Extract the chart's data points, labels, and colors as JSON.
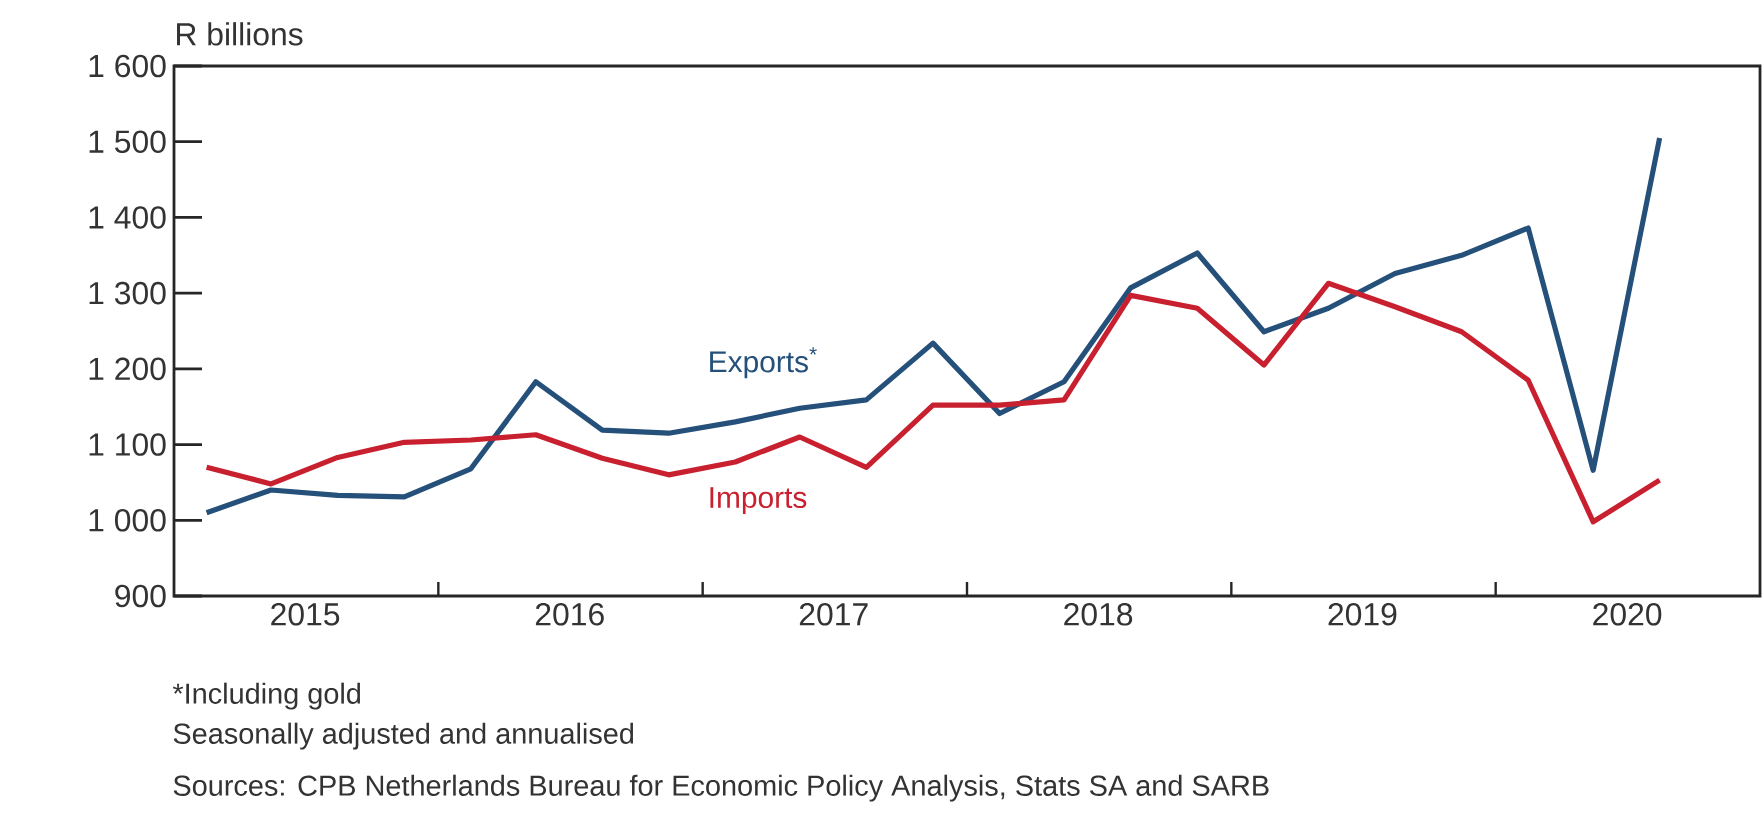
{
  "chart_data": {
    "type": "line",
    "ylabel": "R billions",
    "x": [
      "2015-02-15",
      "2015-05-15",
      "2015-08-15",
      "2015-11-15",
      "2016-02-15",
      "2016-05-15",
      "2016-08-15",
      "2016-11-15",
      "2017-02-15",
      "2017-05-15",
      "2017-08-15",
      "2017-11-15",
      "2018-02-15",
      "2018-05-15",
      "2018-08-15",
      "2018-11-15",
      "2019-02-15",
      "2019-05-15",
      "2019-08-15",
      "2019-11-15",
      "2020-02-15",
      "2020-05-15",
      "2020-08-15"
    ],
    "series": [
      {
        "name": "Exports$^{*}$",
        "color": "#24507a",
        "values": [
          1010,
          1040,
          1033,
          1031,
          1068,
          1183,
          1119,
          1115,
          1130,
          1148,
          1159,
          1234,
          1141,
          1183,
          1307,
          1353,
          1249,
          1280,
          1326,
          1350,
          1386,
          1066,
          1505
        ]
      },
      {
        "name": "Imports",
        "color": "#c8202f",
        "values": [
          1070,
          1048,
          1083,
          1103,
          1106,
          1113,
          1082,
          1060,
          1077,
          1110,
          1070,
          1152,
          1152,
          1159,
          1297,
          1280,
          1205,
          1313,
          1282,
          1249,
          1185,
          998,
          1053
        ]
      }
    ],
    "xlim": [
      "2015-01-01",
      "2021-01-01"
    ],
    "xticks": [
      {
        "value": "2015-07-01",
        "label": "2015"
      },
      {
        "value": "2016-01-01",
        "label": null
      },
      {
        "value": "2016-07-01",
        "label": "2016"
      },
      {
        "value": "2017-01-01",
        "label": null
      },
      {
        "value": "2017-07-01",
        "label": "2017"
      },
      {
        "value": "2018-01-01",
        "label": null
      },
      {
        "value": "2018-07-01",
        "label": "2018"
      },
      {
        "value": "2019-01-01",
        "label": null
      },
      {
        "value": "2019-07-01",
        "label": "2019"
      },
      {
        "value": "2020-01-01",
        "label": null
      },
      {
        "value": "2020-07-01",
        "label": "2020"
      }
    ],
    "ylim": [
      900,
      1600
    ],
    "yticks": [
      900,
      {
        "value": 1000,
        "label": "1 000"
      },
      {
        "value": 1100,
        "label": "1 100"
      },
      {
        "value": 1200,
        "label": "1 200"
      },
      {
        "value": 1300,
        "label": "1 300"
      },
      {
        "value": 1400,
        "label": "1 400"
      },
      {
        "value": 1500,
        "label": "1 500"
      },
      {
        "value": 1600,
        "label": "1 600"
      }
    ],
    "grid": false,
    "annotations": [
      "*Including gold",
      "Seasonally adjusted and annualised",
      "Sources: CPB Netherlands Bureau for Economic Policy Analysis, Stats SA and SARB"
    ]
  }
}
